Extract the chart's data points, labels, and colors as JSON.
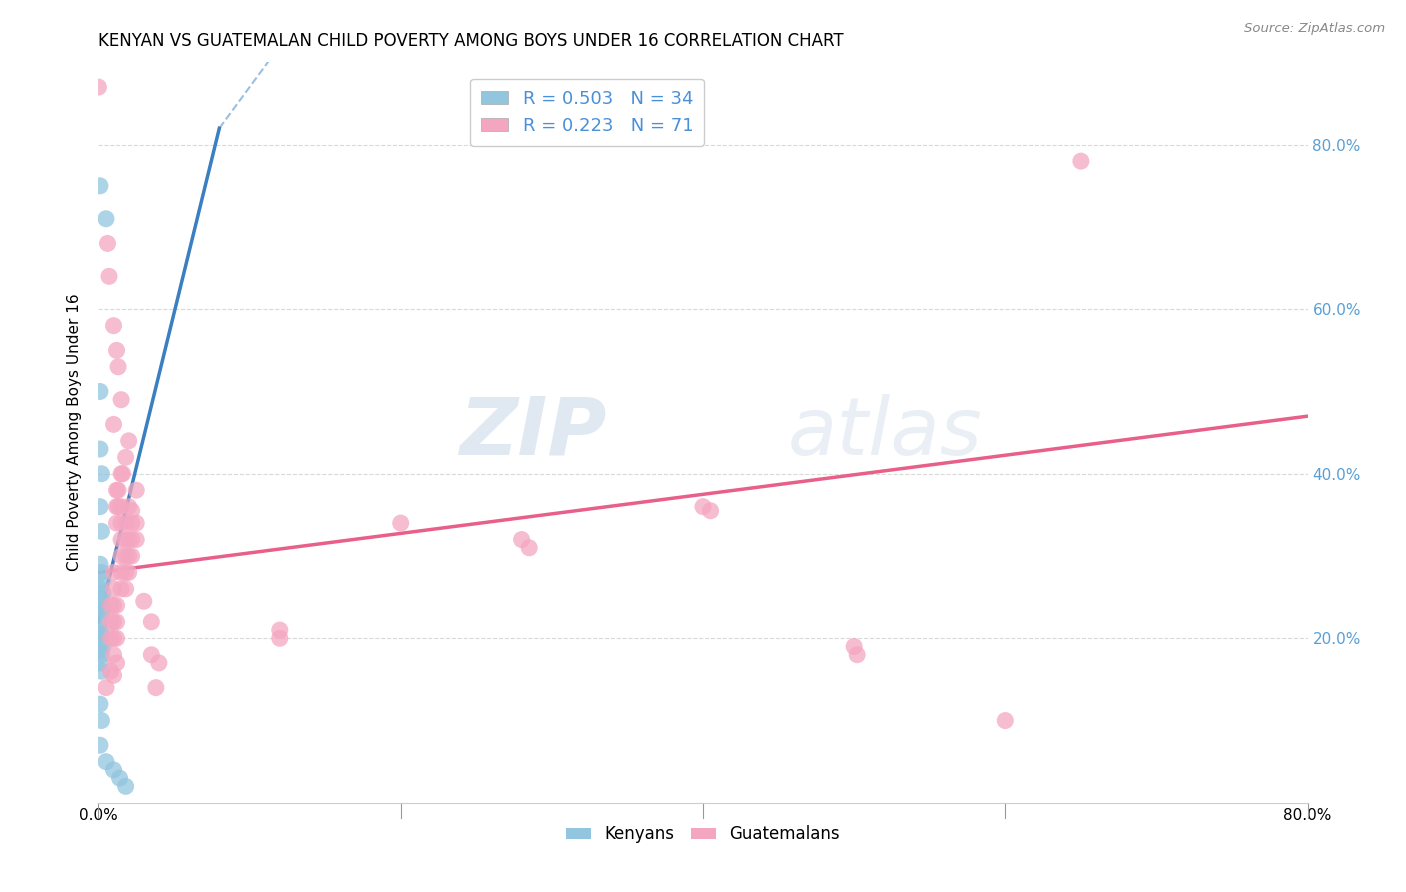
{
  "title": "KENYAN VS GUATEMALAN CHILD POVERTY AMONG BOYS UNDER 16 CORRELATION CHART",
  "source": "Source: ZipAtlas.com",
  "ylabel": "Child Poverty Among Boys Under 16",
  "xlim": [
    0.0,
    0.8
  ],
  "ylim": [
    0.0,
    0.9
  ],
  "xticks": [
    0.0,
    0.2,
    0.4,
    0.6,
    0.8
  ],
  "xticklabels": [
    "0.0%",
    "",
    "",
    "",
    "80.0%"
  ],
  "yticks_right": [
    0.2,
    0.4,
    0.6,
    0.8
  ],
  "yticklabels_right": [
    "20.0%",
    "40.0%",
    "60.0%",
    "80.0%"
  ],
  "kenyan_R": 0.503,
  "kenyan_N": 34,
  "guatemalan_R": 0.223,
  "guatemalan_N": 71,
  "kenyan_color": "#92c5de",
  "guatemalan_color": "#f4a6c0",
  "kenyan_line_color": "#3a7fc1",
  "guatemalan_line_color": "#e8608a",
  "kenyan_line": [
    [
      0.0,
      0.22
    ],
    [
      0.08,
      0.82
    ]
  ],
  "guatemalan_line": [
    [
      0.0,
      0.28
    ],
    [
      0.8,
      0.47
    ]
  ],
  "kenyan_scatter": [
    [
      0.001,
      0.75
    ],
    [
      0.005,
      0.71
    ],
    [
      0.001,
      0.5
    ],
    [
      0.001,
      0.43
    ],
    [
      0.002,
      0.4
    ],
    [
      0.001,
      0.36
    ],
    [
      0.002,
      0.33
    ],
    [
      0.001,
      0.29
    ],
    [
      0.002,
      0.28
    ],
    [
      0.003,
      0.27
    ],
    [
      0.001,
      0.26
    ],
    [
      0.002,
      0.25
    ],
    [
      0.003,
      0.255
    ],
    [
      0.001,
      0.245
    ],
    [
      0.002,
      0.24
    ],
    [
      0.003,
      0.235
    ],
    [
      0.002,
      0.23
    ],
    [
      0.001,
      0.22
    ],
    [
      0.001,
      0.21
    ],
    [
      0.002,
      0.205
    ],
    [
      0.001,
      0.2
    ],
    [
      0.002,
      0.195
    ],
    [
      0.003,
      0.19
    ],
    [
      0.001,
      0.185
    ],
    [
      0.002,
      0.18
    ],
    [
      0.001,
      0.17
    ],
    [
      0.002,
      0.16
    ],
    [
      0.001,
      0.12
    ],
    [
      0.002,
      0.1
    ],
    [
      0.001,
      0.07
    ],
    [
      0.005,
      0.05
    ],
    [
      0.01,
      0.04
    ],
    [
      0.014,
      0.03
    ],
    [
      0.018,
      0.02
    ]
  ],
  "guatemalan_scatter": [
    [
      0.0,
      0.87
    ],
    [
      0.006,
      0.68
    ],
    [
      0.007,
      0.64
    ],
    [
      0.01,
      0.58
    ],
    [
      0.012,
      0.55
    ],
    [
      0.013,
      0.53
    ],
    [
      0.015,
      0.49
    ],
    [
      0.01,
      0.46
    ],
    [
      0.02,
      0.44
    ],
    [
      0.018,
      0.42
    ],
    [
      0.015,
      0.4
    ],
    [
      0.016,
      0.4
    ],
    [
      0.012,
      0.38
    ],
    [
      0.013,
      0.38
    ],
    [
      0.025,
      0.38
    ],
    [
      0.012,
      0.36
    ],
    [
      0.013,
      0.36
    ],
    [
      0.015,
      0.36
    ],
    [
      0.02,
      0.36
    ],
    [
      0.022,
      0.355
    ],
    [
      0.012,
      0.34
    ],
    [
      0.015,
      0.34
    ],
    [
      0.018,
      0.34
    ],
    [
      0.022,
      0.34
    ],
    [
      0.025,
      0.34
    ],
    [
      0.015,
      0.32
    ],
    [
      0.018,
      0.32
    ],
    [
      0.02,
      0.32
    ],
    [
      0.022,
      0.32
    ],
    [
      0.025,
      0.32
    ],
    [
      0.015,
      0.3
    ],
    [
      0.018,
      0.3
    ],
    [
      0.02,
      0.3
    ],
    [
      0.022,
      0.3
    ],
    [
      0.01,
      0.28
    ],
    [
      0.015,
      0.28
    ],
    [
      0.018,
      0.28
    ],
    [
      0.02,
      0.28
    ],
    [
      0.01,
      0.26
    ],
    [
      0.015,
      0.26
    ],
    [
      0.018,
      0.26
    ],
    [
      0.008,
      0.24
    ],
    [
      0.01,
      0.24
    ],
    [
      0.012,
      0.24
    ],
    [
      0.008,
      0.22
    ],
    [
      0.01,
      0.22
    ],
    [
      0.012,
      0.22
    ],
    [
      0.008,
      0.2
    ],
    [
      0.01,
      0.2
    ],
    [
      0.012,
      0.2
    ],
    [
      0.01,
      0.18
    ],
    [
      0.012,
      0.17
    ],
    [
      0.008,
      0.16
    ],
    [
      0.01,
      0.155
    ],
    [
      0.005,
      0.14
    ],
    [
      0.03,
      0.245
    ],
    [
      0.035,
      0.22
    ],
    [
      0.035,
      0.18
    ],
    [
      0.04,
      0.17
    ],
    [
      0.038,
      0.14
    ],
    [
      0.12,
      0.2
    ],
    [
      0.12,
      0.21
    ],
    [
      0.2,
      0.34
    ],
    [
      0.28,
      0.32
    ],
    [
      0.285,
      0.31
    ],
    [
      0.4,
      0.36
    ],
    [
      0.405,
      0.355
    ],
    [
      0.5,
      0.19
    ],
    [
      0.502,
      0.18
    ],
    [
      0.6,
      0.1
    ],
    [
      0.65,
      0.78
    ]
  ],
  "watermark_zip": "ZIP",
  "watermark_atlas": "atlas",
  "background_color": "#ffffff",
  "grid_color": "#d0d0d0"
}
